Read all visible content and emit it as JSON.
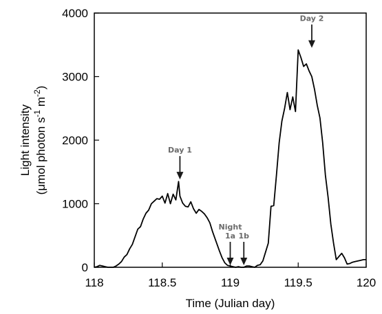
{
  "chart_data": {
    "type": "line",
    "xlabel": "Time (Julian day)",
    "ylabel": {
      "line1": "Light intensity",
      "line2_prefix": "(μmol photon s",
      "line2_exp1": "-1",
      "line2_mid": " m",
      "line2_exp2": "-2",
      "line2_suffix": ")"
    },
    "xlim": [
      118,
      120
    ],
    "ylim": [
      0,
      4000
    ],
    "xticks": [
      {
        "value": 118,
        "label": "118"
      },
      {
        "value": 118.5,
        "label": "118.5"
      },
      {
        "value": 119,
        "label": "119"
      },
      {
        "value": 119.5,
        "label": "119.5"
      },
      {
        "value": 120,
        "label": "120"
      }
    ],
    "yticks": [
      {
        "value": 0,
        "label": "0"
      },
      {
        "value": 1000,
        "label": "1000"
      },
      {
        "value": 2000,
        "label": "2000"
      },
      {
        "value": 3000,
        "label": "3000"
      },
      {
        "value": 4000,
        "label": "4000"
      }
    ],
    "grid": false,
    "series": [
      {
        "color": "#000000",
        "x": [
          118.0,
          118.02,
          118.04,
          118.06,
          118.08,
          118.1,
          118.12,
          118.14,
          118.16,
          118.18,
          118.2,
          118.22,
          118.24,
          118.26,
          118.28,
          118.3,
          118.32,
          118.34,
          118.36,
          118.38,
          118.4,
          118.42,
          118.44,
          118.46,
          118.48,
          118.5,
          118.52,
          118.54,
          118.56,
          118.58,
          118.6,
          118.62,
          118.63,
          118.65,
          118.67,
          118.69,
          118.71,
          118.73,
          118.75,
          118.77,
          118.79,
          118.81,
          118.83,
          118.85,
          118.87,
          118.9,
          118.92,
          118.94,
          118.96,
          118.98,
          119.0,
          119.02,
          119.04,
          119.06,
          119.08,
          119.1,
          119.12,
          119.14,
          119.16,
          119.18,
          119.2,
          119.22,
          119.24,
          119.26,
          119.28,
          119.3,
          119.32,
          119.34,
          119.36,
          119.38,
          119.4,
          119.42,
          119.44,
          119.46,
          119.48,
          119.5,
          119.52,
          119.54,
          119.56,
          119.58,
          119.6,
          119.62,
          119.64,
          119.66,
          119.68,
          119.7,
          119.72,
          119.74,
          119.76,
          119.78,
          119.8,
          119.82,
          119.84,
          119.86,
          119.88,
          119.9,
          119.92,
          119.94,
          119.96,
          119.98,
          120.0
        ],
        "y": [
          0,
          10,
          30,
          20,
          10,
          0,
          0,
          0,
          20,
          50,
          90,
          160,
          200,
          290,
          360,
          480,
          600,
          640,
          760,
          850,
          900,
          1000,
          1040,
          1080,
          1070,
          1120,
          1010,
          1160,
          1000,
          1150,
          1060,
          1350,
          1120,
          1010,
          960,
          950,
          1030,
          920,
          850,
          910,
          880,
          840,
          780,
          700,
          560,
          380,
          260,
          150,
          70,
          30,
          20,
          10,
          0,
          10,
          0,
          0,
          20,
          20,
          10,
          0,
          30,
          40,
          100,
          240,
          380,
          960,
          970,
          1450,
          1960,
          2300,
          2500,
          2750,
          2480,
          2680,
          2450,
          3420,
          3300,
          3160,
          3200,
          3090,
          3000,
          2800,
          2550,
          2350,
          1960,
          1450,
          1100,
          680,
          380,
          120,
          170,
          220,
          150,
          50,
          60,
          80,
          90,
          100,
          110,
          120,
          120
        ]
      }
    ],
    "annotations": [
      {
        "lines": [
          "Day 1"
        ],
        "x": 118.63,
        "y": 1350
      },
      {
        "lines": [
          "Night",
          "1a"
        ],
        "x": 119.0,
        "y": 0
      },
      {
        "lines": [
          "1b"
        ],
        "x": 119.1,
        "y": 0
      },
      {
        "lines": [
          "Day 2"
        ],
        "x": 119.6,
        "y": 3420
      }
    ],
    "colors": {
      "line": "#000000",
      "annotation": "#6b6b6b",
      "arrow": "#1a1a1a"
    }
  }
}
